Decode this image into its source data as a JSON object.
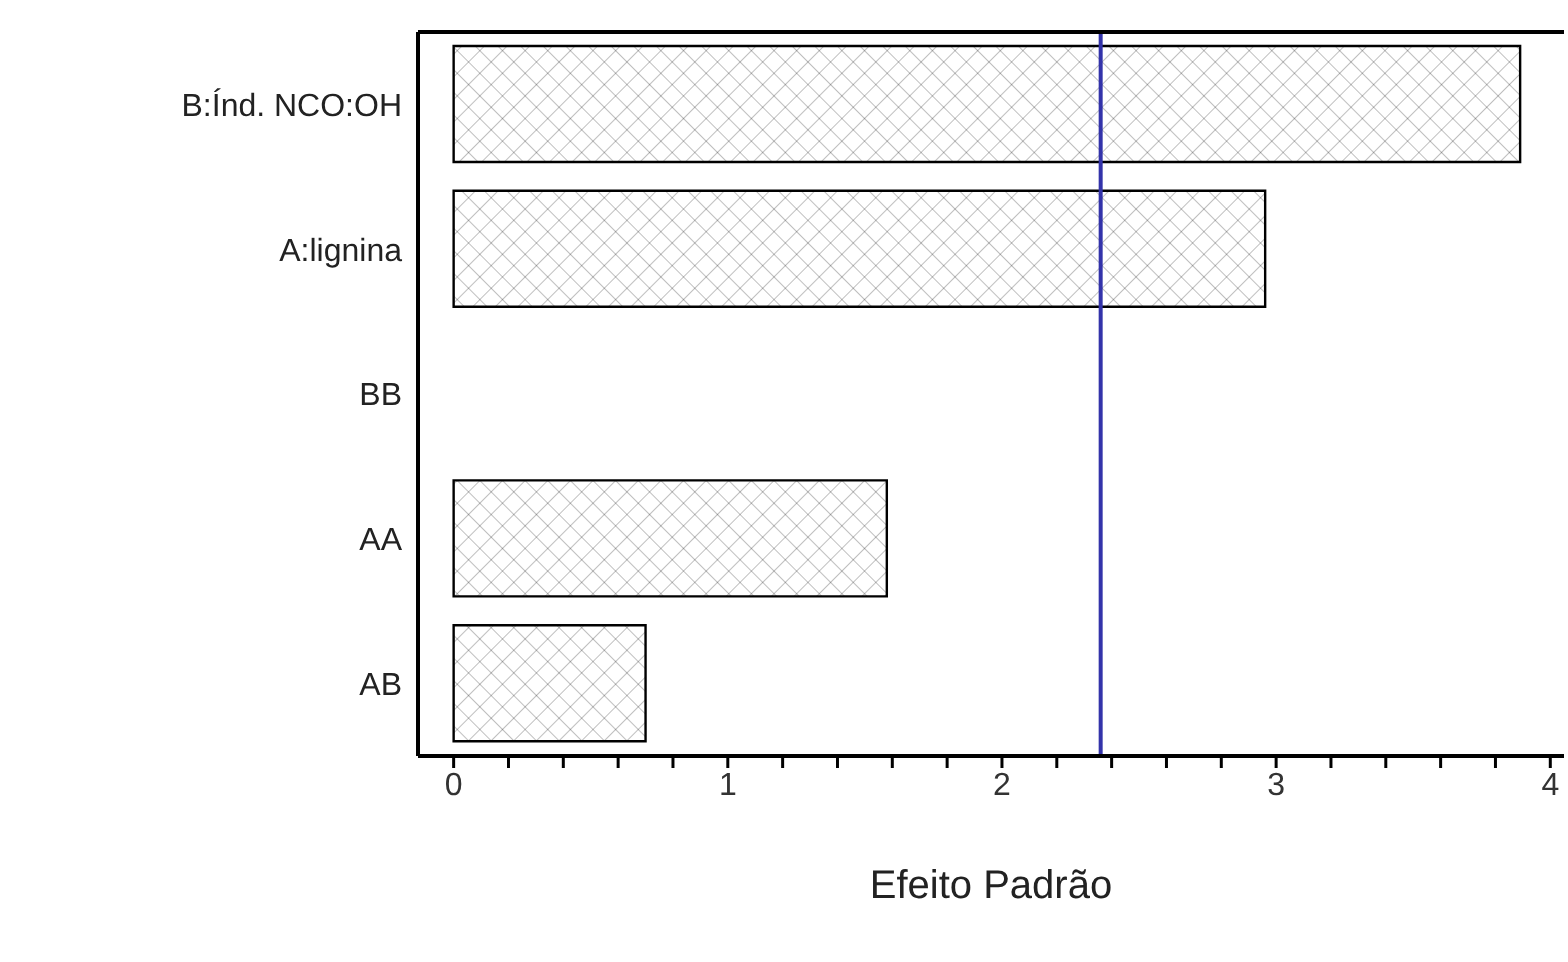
{
  "chart_data": {
    "type": "bar",
    "orientation": "horizontal",
    "xlabel": "Efeito Padrão",
    "categories": [
      "B:Índ. NCO:OH",
      "A:lignina",
      "BB",
      "AA",
      "AB"
    ],
    "values": [
      3.89,
      2.96,
      0,
      1.58,
      0.7
    ],
    "color": "#000000",
    "xlim": [
      -0.13,
      4.05
    ],
    "xticks": [
      0,
      {
        "value": 0.2,
        "label": null
      },
      {
        "value": 0.4,
        "label": null
      },
      {
        "value": 0.6,
        "label": null
      },
      {
        "value": 0.8,
        "label": null
      },
      1,
      {
        "value": 1.2,
        "label": null
      },
      {
        "value": 1.4,
        "label": null
      },
      {
        "value": 1.6,
        "label": null
      },
      {
        "value": 1.8,
        "label": null
      },
      2,
      {
        "value": 2.2,
        "label": null
      },
      {
        "value": 2.4,
        "label": null
      },
      {
        "value": 2.6,
        "label": null
      },
      {
        "value": 2.8,
        "label": null
      },
      3,
      {
        "value": 3.2,
        "label": null
      },
      {
        "value": 3.4,
        "label": null
      },
      {
        "value": 3.6,
        "label": null
      },
      {
        "value": 3.8,
        "label": null
      },
      4
    ],
    "ref_lines": [
      {
        "axis": "x",
        "value": 2.36,
        "color": "#3333aa"
      }
    ],
    "grid": false
  }
}
